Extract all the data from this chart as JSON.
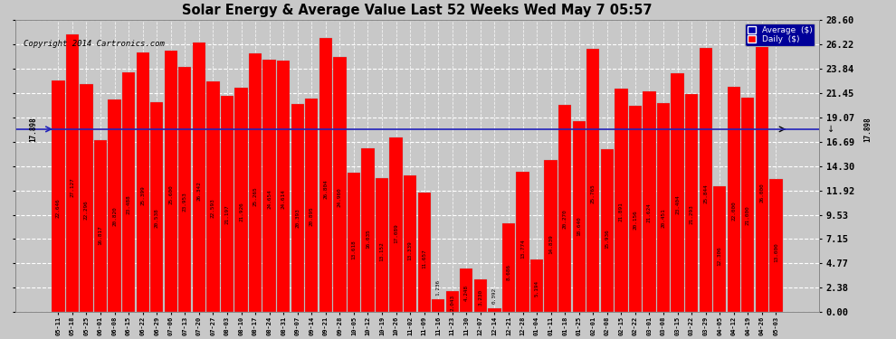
{
  "title": "Solar Energy & Average Value Last 52 Weeks Wed May 7 05:57",
  "copyright": "Copyright 2014 Cartronics.com",
  "average_value": 17.898,
  "bar_color": "#ff0000",
  "avg_line_color": "#2222bb",
  "background_color": "#c8c8c8",
  "plot_bg_color": "#c8c8c8",
  "yticks": [
    0.0,
    2.38,
    4.77,
    7.15,
    9.53,
    11.92,
    14.3,
    16.69,
    19.07,
    21.45,
    23.84,
    26.22,
    28.6
  ],
  "ylim": [
    0,
    28.6
  ],
  "labels": [
    "05-11",
    "05-18",
    "05-25",
    "06-01",
    "06-08",
    "06-15",
    "06-22",
    "06-29",
    "07-06",
    "07-13",
    "07-20",
    "07-27",
    "08-03",
    "08-10",
    "08-17",
    "08-24",
    "08-31",
    "09-07",
    "09-14",
    "09-21",
    "09-28",
    "10-05",
    "10-12",
    "10-19",
    "10-26",
    "11-02",
    "11-09",
    "11-16",
    "11-23",
    "11-30",
    "12-07",
    "12-14",
    "12-21",
    "12-28",
    "01-04",
    "01-11",
    "01-18",
    "01-25",
    "02-01",
    "02-08",
    "02-15",
    "02-22",
    "03-01",
    "03-08",
    "03-15",
    "03-22",
    "03-29",
    "04-05",
    "04-12",
    "04-19",
    "04-26",
    "05-03"
  ],
  "values": [
    22.646,
    27.127,
    22.296,
    16.817,
    20.82,
    23.488,
    25.399,
    20.538,
    25.6,
    23.953,
    26.342,
    22.593,
    21.197,
    21.926,
    25.265,
    24.654,
    24.614,
    20.393,
    20.895,
    26.804,
    24.96,
    13.618,
    16.035,
    13.152,
    17.089,
    13.339,
    11.657,
    1.236,
    2.043,
    4.248,
    3.23,
    0.392,
    8.686,
    13.774,
    5.194,
    14.839,
    20.27,
    18.64,
    25.765,
    15.936,
    21.891,
    20.156,
    21.624,
    20.451,
    23.404,
    21.293,
    25.844,
    12.306,
    22.0,
    21.0,
    26.0,
    13.0
  ]
}
